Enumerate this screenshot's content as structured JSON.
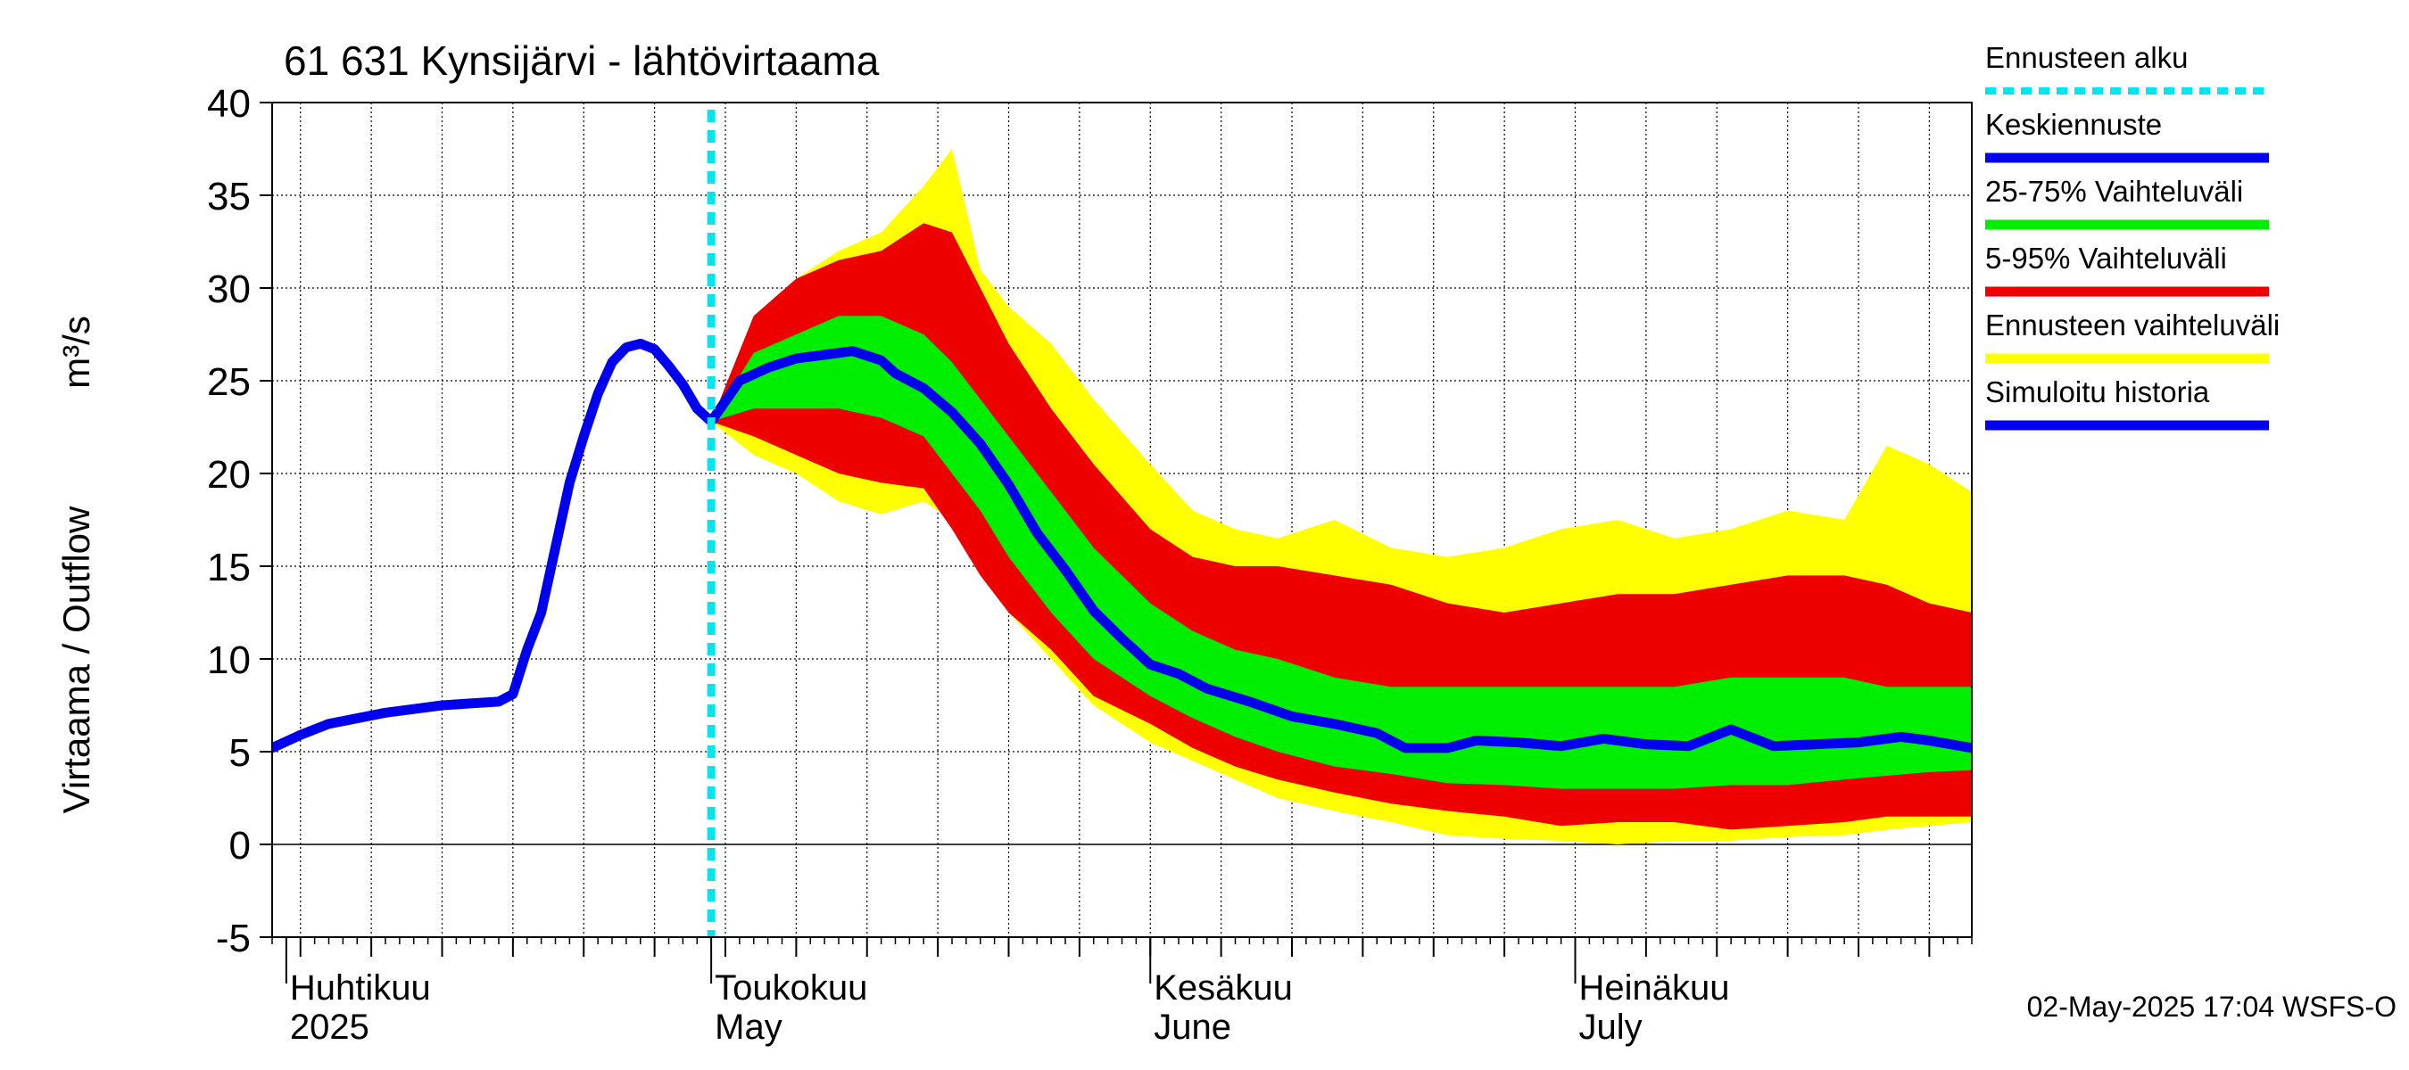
{
  "chart_data": {
    "type": "area",
    "title": "61 631 Kynsijärvi - lähtövirtaama",
    "ylabel_fi": "Virtaama / Outflow",
    "ylabel_unit": "m³/s",
    "ylim": [
      -5,
      40
    ],
    "yticks": [
      -5,
      0,
      5,
      10,
      15,
      20,
      25,
      30,
      35,
      40
    ],
    "grid": true,
    "legend_position": "right",
    "timestamp": "02-May-2025 17:04 WSFS-O",
    "x_range": [
      "2025-03-31",
      "2025-07-29"
    ],
    "month_labels": [
      {
        "date": "2025-04-01",
        "line1": "Huhtikuu",
        "line2": "2025"
      },
      {
        "date": "2025-05-01",
        "line1": "Toukokuu",
        "line2": "May"
      },
      {
        "date": "2025-06-01",
        "line1": "Kesäkuu",
        "line2": "June"
      },
      {
        "date": "2025-07-01",
        "line1": "Heinäkuu",
        "line2": "July"
      }
    ],
    "forecast_start": "2025-05-01",
    "legend": [
      {
        "label": "Ennusteen alku",
        "color": "#00e5ee",
        "style": "dotted"
      },
      {
        "label": "Keskiennuste",
        "color": "#0000ee",
        "style": "solid"
      },
      {
        "label": "25-75% Vaihteluväli",
        "color": "#00ee00",
        "style": "solid"
      },
      {
        "label": "5-95% Vaihteluväli",
        "color": "#ee0000",
        "style": "solid"
      },
      {
        "label": "Ennusteen vaihteluväli",
        "color": "#ffff00",
        "style": "solid"
      },
      {
        "label": "Simuloitu historia",
        "color": "#0000ee",
        "style": "solid"
      }
    ],
    "series": [
      {
        "name": "Simuloitu historia",
        "color": "#0000ee",
        "points": [
          [
            "2025-03-31",
            5.2
          ],
          [
            "2025-04-02",
            5.9
          ],
          [
            "2025-04-04",
            6.5
          ],
          [
            "2025-04-06",
            6.8
          ],
          [
            "2025-04-08",
            7.1
          ],
          [
            "2025-04-10",
            7.3
          ],
          [
            "2025-04-12",
            7.5
          ],
          [
            "2025-04-14",
            7.6
          ],
          [
            "2025-04-16",
            7.7
          ],
          [
            "2025-04-17",
            8.1
          ],
          [
            "2025-04-18",
            10.5
          ],
          [
            "2025-04-19",
            12.5
          ],
          [
            "2025-04-20",
            16.0
          ],
          [
            "2025-04-21",
            19.5
          ],
          [
            "2025-04-22",
            22.0
          ],
          [
            "2025-04-23",
            24.3
          ],
          [
            "2025-04-24",
            26.0
          ],
          [
            "2025-04-25",
            26.8
          ],
          [
            "2025-04-26",
            27.0
          ],
          [
            "2025-04-27",
            26.7
          ],
          [
            "2025-04-28",
            25.8
          ],
          [
            "2025-04-29",
            24.8
          ],
          [
            "2025-04-30",
            23.5
          ],
          [
            "2025-05-01",
            22.8
          ]
        ]
      },
      {
        "name": "Keskiennuste",
        "color": "#0000ee",
        "points": [
          [
            "2025-05-01",
            22.8
          ],
          [
            "2025-05-03",
            25.0
          ],
          [
            "2025-05-05",
            25.7
          ],
          [
            "2025-05-07",
            26.2
          ],
          [
            "2025-05-09",
            26.4
          ],
          [
            "2025-05-11",
            26.6
          ],
          [
            "2025-05-13",
            26.1
          ],
          [
            "2025-05-14",
            25.4
          ],
          [
            "2025-05-16",
            24.6
          ],
          [
            "2025-05-18",
            23.3
          ],
          [
            "2025-05-20",
            21.6
          ],
          [
            "2025-05-22",
            19.4
          ],
          [
            "2025-05-24",
            16.8
          ],
          [
            "2025-05-26",
            14.8
          ],
          [
            "2025-05-28",
            12.6
          ],
          [
            "2025-05-30",
            11.1
          ],
          [
            "2025-06-01",
            9.7
          ],
          [
            "2025-06-03",
            9.2
          ],
          [
            "2025-06-05",
            8.4
          ],
          [
            "2025-06-08",
            7.7
          ],
          [
            "2025-06-11",
            6.9
          ],
          [
            "2025-06-14",
            6.5
          ],
          [
            "2025-06-17",
            6.0
          ],
          [
            "2025-06-19",
            5.2
          ],
          [
            "2025-06-22",
            5.2
          ],
          [
            "2025-06-24",
            5.6
          ],
          [
            "2025-06-27",
            5.5
          ],
          [
            "2025-06-30",
            5.3
          ],
          [
            "2025-07-03",
            5.7
          ],
          [
            "2025-07-06",
            5.4
          ],
          [
            "2025-07-09",
            5.3
          ],
          [
            "2025-07-12",
            6.2
          ],
          [
            "2025-07-15",
            5.3
          ],
          [
            "2025-07-18",
            5.4
          ],
          [
            "2025-07-21",
            5.5
          ],
          [
            "2025-07-24",
            5.8
          ],
          [
            "2025-07-26",
            5.6
          ],
          [
            "2025-07-29",
            5.2
          ]
        ]
      }
    ],
    "bands": [
      {
        "name": "Ennusteen vaihteluväli",
        "color": "#ffff00",
        "x": [
          "2025-05-01",
          "2025-05-04",
          "2025-05-07",
          "2025-05-10",
          "2025-05-13",
          "2025-05-16",
          "2025-05-18",
          "2025-05-20",
          "2025-05-22",
          "2025-05-25",
          "2025-05-28",
          "2025-06-01",
          "2025-06-04",
          "2025-06-07",
          "2025-06-10",
          "2025-06-14",
          "2025-06-18",
          "2025-06-22",
          "2025-06-26",
          "2025-06-30",
          "2025-07-04",
          "2025-07-08",
          "2025-07-12",
          "2025-07-16",
          "2025-07-20",
          "2025-07-23",
          "2025-07-26",
          "2025-07-29"
        ],
        "low": [
          22.8,
          21.0,
          20.0,
          18.5,
          17.8,
          18.5,
          17.5,
          15.0,
          12.5,
          10.0,
          7.5,
          5.5,
          4.5,
          3.5,
          2.5,
          1.8,
          1.2,
          0.5,
          0.3,
          0.2,
          0.0,
          0.2,
          0.2,
          0.4,
          0.5,
          0.8,
          1.0,
          1.2
        ],
        "high": [
          22.8,
          27.5,
          30.5,
          32.0,
          33.0,
          35.5,
          37.5,
          31.0,
          29.0,
          27.0,
          24.0,
          20.5,
          18.0,
          17.0,
          16.5,
          17.5,
          16.0,
          15.5,
          16.0,
          17.0,
          17.5,
          16.5,
          17.0,
          18.0,
          17.5,
          21.5,
          20.5,
          19.0
        ]
      },
      {
        "name": "5-95% Vaihteluväli",
        "color": "#ee0000",
        "x": [
          "2025-05-01",
          "2025-05-04",
          "2025-05-07",
          "2025-05-10",
          "2025-05-13",
          "2025-05-16",
          "2025-05-18",
          "2025-05-20",
          "2025-05-22",
          "2025-05-25",
          "2025-05-28",
          "2025-06-01",
          "2025-06-04",
          "2025-06-07",
          "2025-06-10",
          "2025-06-14",
          "2025-06-18",
          "2025-06-22",
          "2025-06-26",
          "2025-06-30",
          "2025-07-04",
          "2025-07-08",
          "2025-07-12",
          "2025-07-16",
          "2025-07-20",
          "2025-07-23",
          "2025-07-26",
          "2025-07-29"
        ],
        "low": [
          22.8,
          22.0,
          21.0,
          20.0,
          19.5,
          19.2,
          17.0,
          14.5,
          12.5,
          10.5,
          8.0,
          6.5,
          5.2,
          4.2,
          3.5,
          2.8,
          2.2,
          1.8,
          1.5,
          1.0,
          1.2,
          1.2,
          0.8,
          1.0,
          1.2,
          1.5,
          1.5,
          1.5
        ],
        "high": [
          22.8,
          28.5,
          30.5,
          31.5,
          32.0,
          33.5,
          33.0,
          30.0,
          27.0,
          23.5,
          20.5,
          17.0,
          15.5,
          15.0,
          15.0,
          14.5,
          14.0,
          13.0,
          12.5,
          13.0,
          13.5,
          13.5,
          14.0,
          14.5,
          14.5,
          14.0,
          13.0,
          12.5
        ]
      },
      {
        "name": "25-75% Vaihteluväli",
        "color": "#00ee00",
        "x": [
          "2025-05-01",
          "2025-05-04",
          "2025-05-07",
          "2025-05-10",
          "2025-05-13",
          "2025-05-16",
          "2025-05-18",
          "2025-05-20",
          "2025-05-22",
          "2025-05-25",
          "2025-05-28",
          "2025-06-01",
          "2025-06-04",
          "2025-06-07",
          "2025-06-10",
          "2025-06-14",
          "2025-06-18",
          "2025-06-22",
          "2025-06-26",
          "2025-06-30",
          "2025-07-04",
          "2025-07-08",
          "2025-07-12",
          "2025-07-16",
          "2025-07-20",
          "2025-07-23",
          "2025-07-26",
          "2025-07-29"
        ],
        "low": [
          22.8,
          23.5,
          23.5,
          23.5,
          23.0,
          22.0,
          20.0,
          18.0,
          15.5,
          12.5,
          10.0,
          8.0,
          6.8,
          5.8,
          5.0,
          4.2,
          3.8,
          3.3,
          3.2,
          3.0,
          3.0,
          3.0,
          3.2,
          3.2,
          3.5,
          3.7,
          3.9,
          4.0
        ],
        "high": [
          22.8,
          26.5,
          27.5,
          28.5,
          28.5,
          27.5,
          26.0,
          24.0,
          22.0,
          19.0,
          16.0,
          13.0,
          11.5,
          10.5,
          10.0,
          9.0,
          8.5,
          8.5,
          8.5,
          8.5,
          8.5,
          8.5,
          9.0,
          9.0,
          9.0,
          8.5,
          8.5,
          8.5
        ]
      }
    ]
  }
}
